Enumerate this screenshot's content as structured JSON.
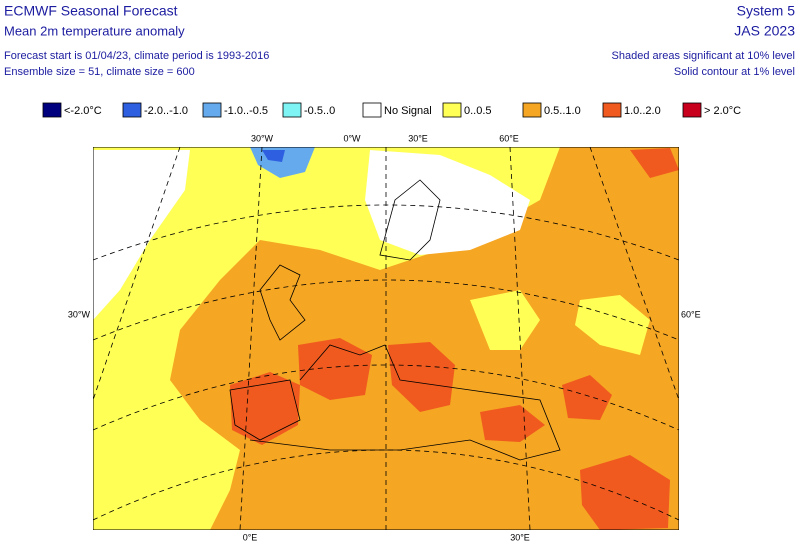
{
  "header": {
    "title": "ECMWF Seasonal Forecast",
    "subtitle": "Mean 2m temperature anomaly",
    "forecast_info": "Forecast start is 01/04/23, climate period is 1993-2016",
    "ensemble_info": "Ensemble size = 51, climate size = 600",
    "system": "System 5",
    "period": "JAS 2023",
    "significance_note": "Shaded areas significant at 10% level",
    "contour_note": "Solid contour at 1% level"
  },
  "legend": [
    {
      "label": "<-2.0°C",
      "color": "#00007f"
    },
    {
      "label": "-2.0..-1.0",
      "color": "#2e5fe0"
    },
    {
      "label": "-1.0..-0.5",
      "color": "#66aaee"
    },
    {
      "label": "-0.5..0",
      "color": "#7ff4f4"
    },
    {
      "label": "No Signal",
      "color": "#ffffff"
    },
    {
      "label": "0..0.5",
      "color": "#ffff55"
    },
    {
      "label": "0.5..1.0",
      "color": "#f5a623"
    },
    {
      "label": "1.0..2.0",
      "color": "#f05a1e"
    },
    {
      "label": "> 2.0°C",
      "color": "#c8001e"
    }
  ],
  "graticule_labels": {
    "top": [
      "30°W",
      "0°W",
      "30°E",
      "60°E"
    ],
    "left": "30°W",
    "right": "60°E",
    "bottom": [
      "0°E",
      "30°E"
    ]
  }
}
